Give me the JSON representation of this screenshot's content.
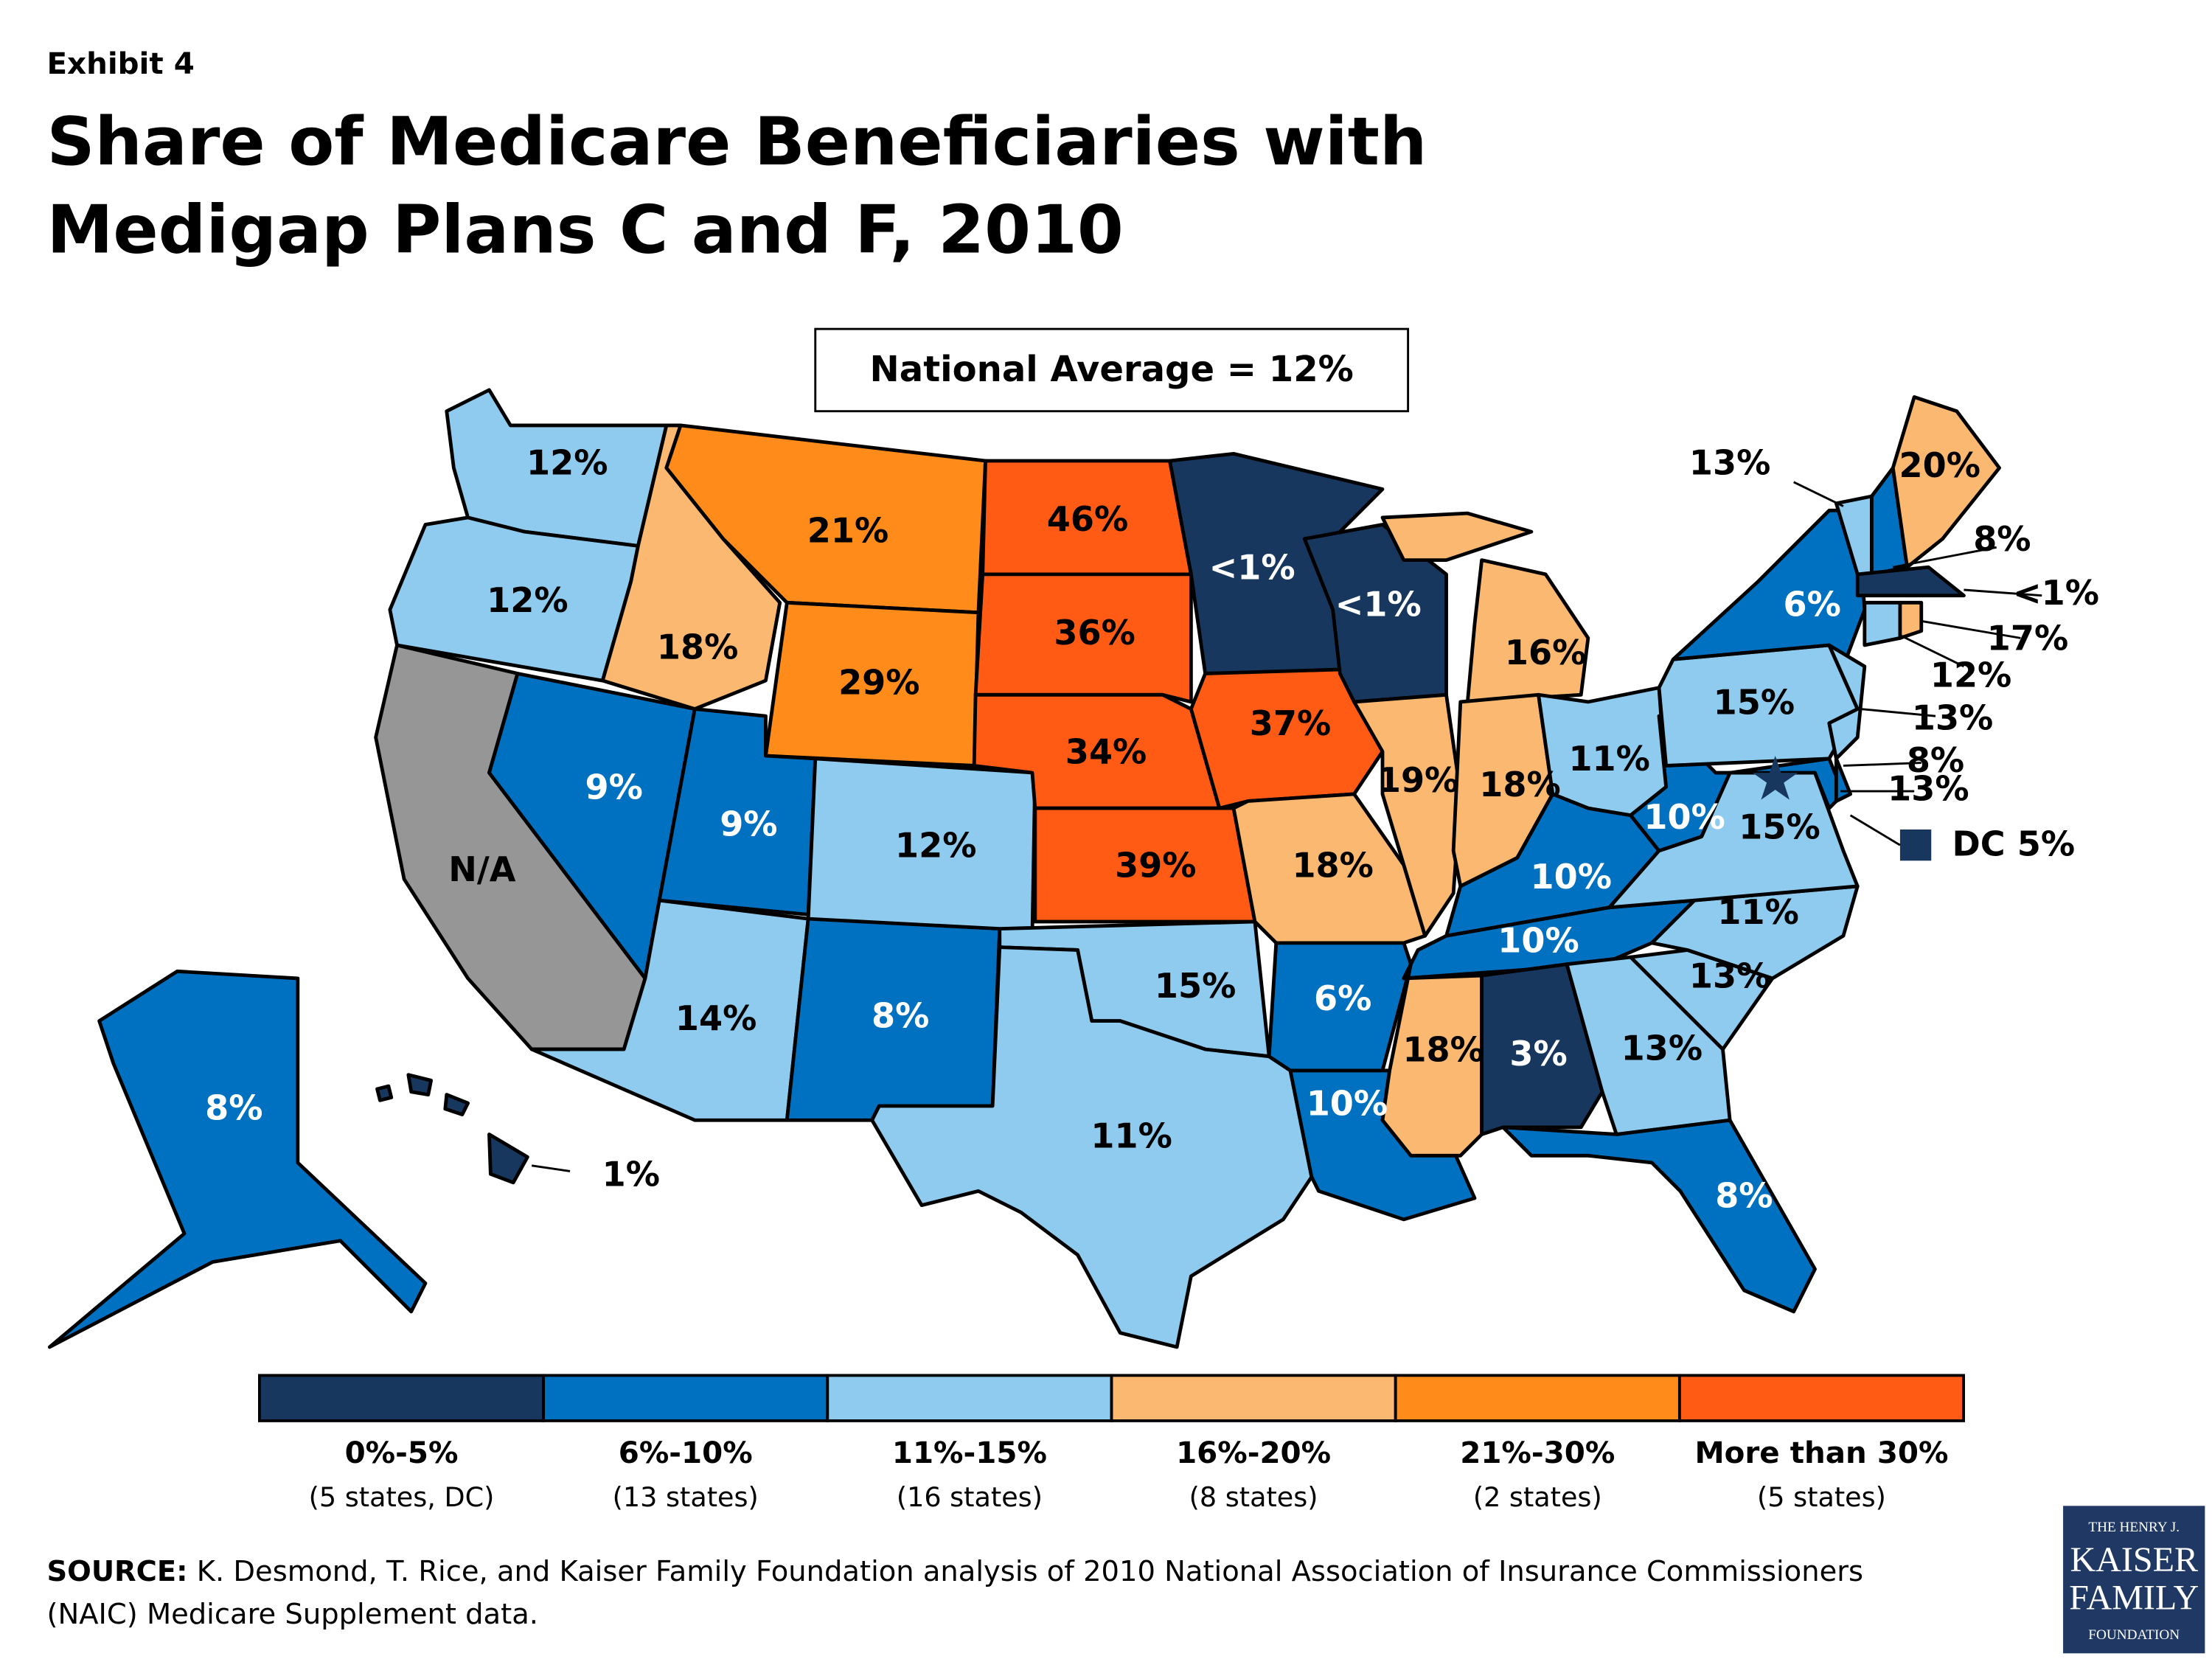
{
  "header": {
    "exhibit": "Exhibit 4",
    "title_lines": [
      "Share of Medicare Beneficiaries with",
      "Medigap Plans C and F, 2010"
    ]
  },
  "national_average": "National Average = 12%",
  "map_labels": [
    "12%",
    "12%",
    "N/A",
    "9%",
    "18%",
    "21%",
    "29%",
    "9%",
    "12%",
    "14%",
    "8%",
    "46%",
    "36%",
    "34%",
    "39%",
    "15%",
    "11%",
    "<1%",
    "37%",
    "18%",
    "6%",
    "10%",
    "<1%",
    "19%",
    "16%",
    "18%",
    "11%",
    "10%",
    "10%",
    "18%",
    "3%",
    "13%",
    "8%",
    "13%",
    "11%",
    "15%",
    "10%",
    "15%",
    "6%",
    "20%",
    "8%",
    "1%",
    "13%",
    "8%",
    "<1%",
    "17%",
    "12%",
    "13%",
    "8%",
    "13%",
    "DC 5%"
  ],
  "legend": [
    {
      "range": "0%-5%",
      "count": "(5 states, DC)"
    },
    {
      "range": "6%-10%",
      "count": "(13 states)"
    },
    {
      "range": "11%-15%",
      "count": "(16 states)"
    },
    {
      "range": "16%-20%",
      "count": "(8 states)"
    },
    {
      "range": "21%-30%",
      "count": "(2 states)"
    },
    {
      "range": "More than 30%",
      "count": "(5 states)"
    }
  ],
  "source": {
    "label": "SOURCE:",
    "lines": [
      " K. Desmond, T. Rice, and  Kaiser Family Foundation analysis of 2010 National Association of Insurance Commissioners",
      "(NAIC) Medicare Supplement data."
    ]
  },
  "logo": [
    "THE HENRY J.",
    "KAISER",
    "FAMILY",
    "FOUNDATION"
  ]
}
